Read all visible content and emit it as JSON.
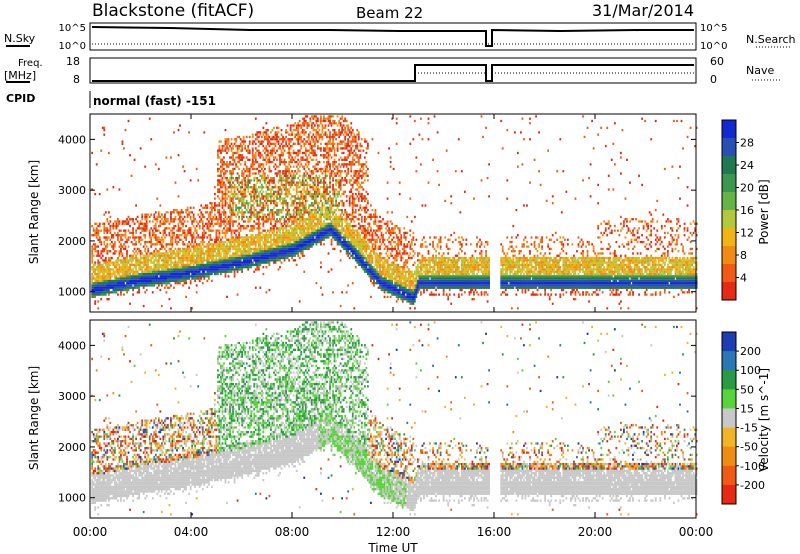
{
  "header": {
    "title": "Blackstone (fitACF)",
    "beam": "Beam 22",
    "date": "31/Mar/2014"
  },
  "strips": {
    "nsky": {
      "label": "N.Sky",
      "ticks": [
        "10^5",
        "10^0"
      ]
    },
    "nsearch": {
      "label": "N.Search",
      "ticks": [
        "10^5",
        "10^0"
      ]
    },
    "freq": {
      "label_1": "Freq.",
      "label_2": "[MHz]",
      "ticks": [
        "18",
        "8"
      ]
    },
    "nave": {
      "label": "Nave",
      "ticks": [
        "60",
        "0"
      ]
    },
    "cpid": {
      "label": "CPID",
      "value": "normal (fast) -151"
    }
  },
  "chart_data": [
    {
      "type": "heatmap",
      "title": "",
      "parameter": "Power",
      "colorbar_label": "Power [dB]",
      "colorbar_ticks": [
        "28",
        "24",
        "20",
        "16",
        "12",
        "8",
        "4"
      ],
      "colorbar_colors": [
        "#1428d2",
        "#2850b4",
        "#1e7850",
        "#3c9650",
        "#64b446",
        "#b4c83c",
        "#f0b414",
        "#f08c14",
        "#f05a14",
        "#e62814"
      ],
      "ylabel": "Slant Range [km]",
      "ylim": [
        600,
        4500
      ],
      "yticks": [
        "4000",
        "3000",
        "2000",
        "1000"
      ],
      "xlim_hours": [
        0,
        24
      ],
      "main_echo_band": {
        "time_h": [
          0,
          2,
          4,
          6,
          8,
          9.5,
          10.5,
          11.5,
          12.8,
          13,
          16,
          16.3,
          24
        ],
        "range_km": [
          1000,
          1200,
          1350,
          1550,
          1800,
          2200,
          1700,
          1150,
          850,
          1150,
          1150,
          1150,
          1150
        ]
      },
      "data_gap_hours": [
        15.8,
        16.2
      ]
    },
    {
      "type": "heatmap",
      "title": "",
      "parameter": "Velocity",
      "colorbar_label": "Velocity [m s^-1]",
      "colorbar_ticks": [
        "200",
        "100",
        "50",
        "15",
        "-15",
        "-50",
        "-100",
        "-200"
      ],
      "colorbar_colors": [
        "#1e3cb4",
        "#2878b4",
        "#2a9a46",
        "#5ad23c",
        "#c8c8c8",
        "#f0b428",
        "#f08c14",
        "#f05a14",
        "#e62814"
      ],
      "ylabel": "Slant Range [km]",
      "ylim": [
        600,
        4500
      ],
      "yticks": [
        "4000",
        "3000",
        "2000",
        "1000"
      ],
      "xlim_hours": [
        0,
        24
      ],
      "xlabel": "Time UT",
      "xticks": [
        "00:00",
        "04:00",
        "08:00",
        "12:00",
        "16:00",
        "20:00",
        "00:00"
      ],
      "data_gap_hours": [
        15.8,
        16.2
      ]
    }
  ]
}
